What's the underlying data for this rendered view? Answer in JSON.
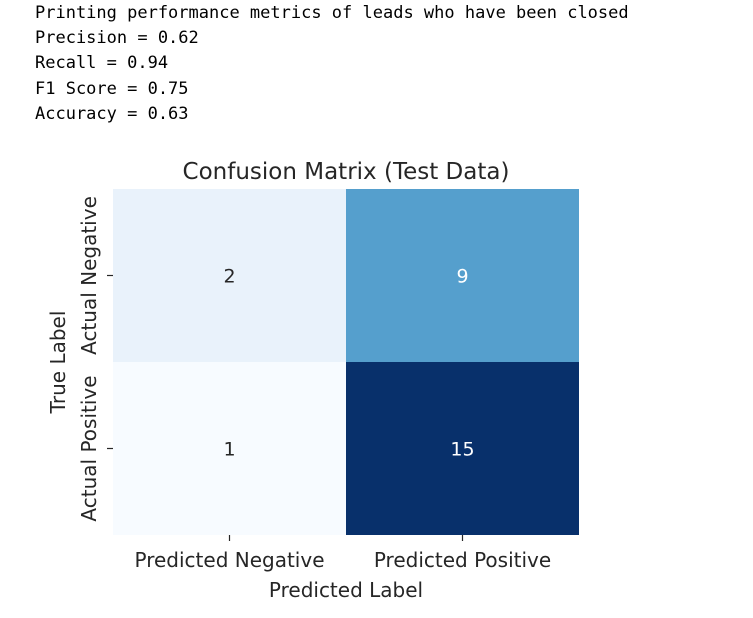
{
  "console": {
    "lines": [
      "Printing performance metrics of leads who have been closed",
      "Precision = 0.62",
      "Recall = 0.94",
      "F1 Score = 0.75",
      "Accuracy = 0.63"
    ]
  },
  "chart_data": {
    "type": "heatmap",
    "title": "Confusion Matrix (Test Data)",
    "xlabel": "Predicted Label",
    "ylabel": "True Label",
    "x_categories": [
      "Predicted Negative",
      "Predicted Positive"
    ],
    "y_categories": [
      "Actual Negative",
      "Actual Positive"
    ],
    "values": [
      [
        2,
        9
      ],
      [
        1,
        15
      ]
    ],
    "colormap": "Blues",
    "colorbar": false,
    "annotations": true,
    "colors": {
      "low": "#f7fbff",
      "high": "#08306b",
      "cell_0_0": "#e9f2fb",
      "cell_0_1": "#559fcd",
      "cell_1_0": "#f7fbff",
      "cell_1_1": "#08306b",
      "dark_text": "#262626",
      "light_text": "#ffffff"
    }
  }
}
